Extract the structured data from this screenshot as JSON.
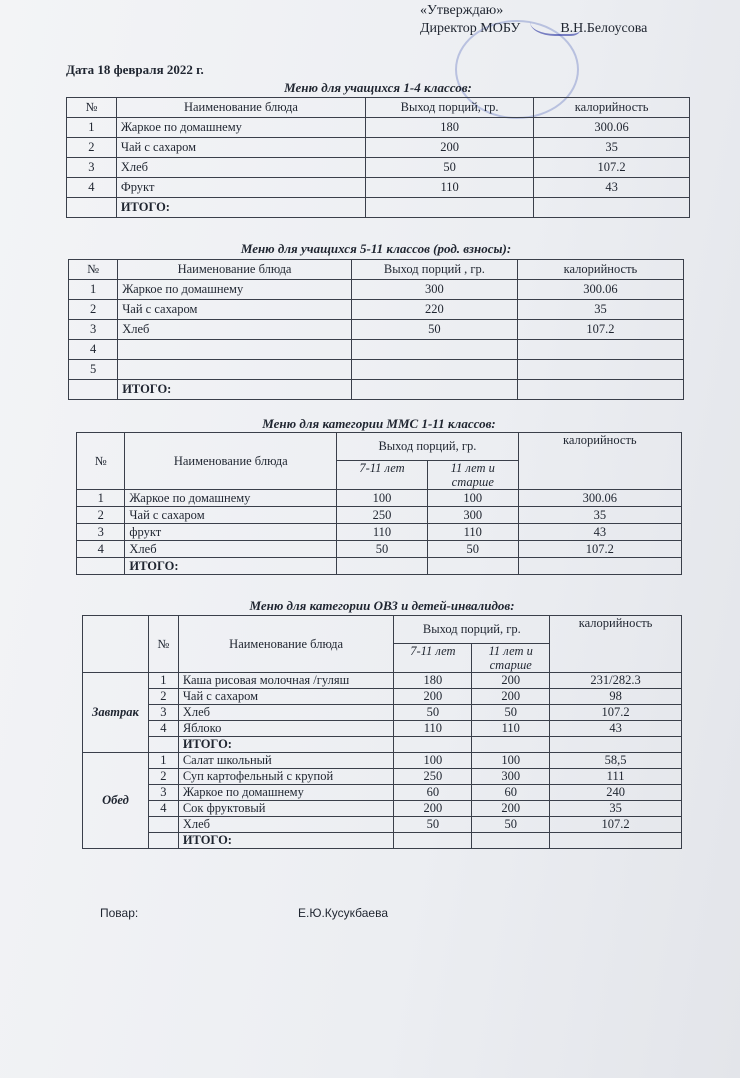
{
  "approval": {
    "line1": "«Утверждаю»",
    "line2": "Директор МОБУ",
    "signer": "В.Н.Белоусова"
  },
  "date": "Дата 18 февраля 2022 г.",
  "table1": {
    "title": "Меню для учащихся 1-4 классов:",
    "header": [
      "№",
      "Наименование блюда",
      "Выход порций, гр.",
      "калорийность"
    ],
    "rows": [
      [
        "1",
        "Жаркое по домашнему",
        "180",
        "300.06"
      ],
      [
        "2",
        "Чай с сахаром",
        "200",
        "35"
      ],
      [
        "3",
        "Хлеб",
        "50",
        "107.2"
      ],
      [
        "4",
        "Фрукт",
        "110",
        "43"
      ],
      [
        null,
        "ИТОГО:",
        null,
        null
      ]
    ]
  },
  "table2": {
    "title": "Меню для учащихся 5-11 классов (род. взносы):",
    "header": [
      "№",
      "Наименование блюда",
      "Выход порций , гр.",
      "калорийность"
    ],
    "rows": [
      [
        "1",
        "Жаркое по домашнему",
        "300",
        "300.06"
      ],
      [
        "2",
        "Чай с сахаром",
        "220",
        "35"
      ],
      [
        "3",
        "Хлеб",
        "50",
        "107.2"
      ],
      [
        "4",
        null,
        null,
        null
      ],
      [
        "5",
        null,
        null,
        null
      ],
      [
        null,
        "ИТОГО:",
        null,
        null
      ]
    ]
  },
  "table3": {
    "title": "Меню для категории ММС 1-11 классов:",
    "header": {
      "number": "№",
      "name": "Наименование блюда",
      "output": "Выход порций, гр.",
      "age_groups": [
        "7-11 лет",
        "11 лет и старше"
      ],
      "calories": "калорийность"
    },
    "rows": [
      [
        "1",
        "Жаркое по домашнему",
        "100",
        "100",
        "300.06"
      ],
      [
        "2",
        "Чай с сахаром",
        "250",
        "300",
        "35"
      ],
      [
        "3",
        "фрукт",
        "110",
        "110",
        "43"
      ],
      [
        "4",
        "Хлеб",
        "50",
        "50",
        "107.2"
      ],
      [
        null,
        "ИТОГО:",
        null,
        null,
        null
      ]
    ]
  },
  "table4": {
    "title": "Меню для категории ОВЗ и детей-инвалидов:",
    "header": {
      "number": "№",
      "name": "Наименование блюда",
      "output": "Выход порций, гр.",
      "age_groups": [
        "7-11 лет",
        "11 лет и старше"
      ],
      "calories": "калорийность"
    },
    "sections": [
      {
        "name": "Завтрак",
        "rows": [
          [
            "1",
            "Каша рисовая молочная /гуляш",
            "180",
            "200",
            "231/282.3"
          ],
          [
            "2",
            "Чай с сахаром",
            "200",
            "200",
            "98"
          ],
          [
            "3",
            "Хлеб",
            "50",
            "50",
            "107.2"
          ],
          [
            "4",
            "Яблоко",
            "110",
            "110",
            "43"
          ],
          [
            null,
            "ИТОГО:",
            null,
            null,
            null
          ]
        ]
      },
      {
        "name": "Обед",
        "rows": [
          [
            "1",
            "Салат школьный",
            "100",
            "100",
            "58,5"
          ],
          [
            "2",
            "Суп картофельный с крупой",
            "250",
            "300",
            "111"
          ],
          [
            "3",
            "Жаркое по домашнему",
            "60",
            "60",
            "240"
          ],
          [
            "4",
            "Сок фруктовый",
            "200",
            "200",
            "35"
          ],
          [
            null,
            "Хлеб",
            "50",
            "50",
            "107.2"
          ],
          [
            null,
            "ИТОГО:",
            null,
            null,
            null
          ]
        ]
      }
    ]
  },
  "footer": {
    "cook_label": "Повар:",
    "cook_name": "Е.Ю.Кусукбаева"
  }
}
